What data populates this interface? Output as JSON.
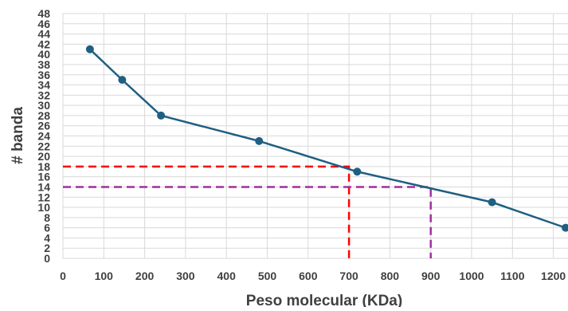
{
  "chart_data": {
    "type": "line",
    "title": "",
    "xlabel": "Peso molecular (KDa)",
    "ylabel": "# banda",
    "xlim": [
      0,
      1230
    ],
    "ylim": [
      0,
      48
    ],
    "xticks": [
      0,
      100,
      200,
      300,
      400,
      500,
      600,
      700,
      800,
      900,
      1000,
      1100,
      1200
    ],
    "yticks": [
      0,
      2,
      4,
      6,
      8,
      10,
      12,
      14,
      16,
      18,
      20,
      22,
      24,
      26,
      28,
      30,
      32,
      34,
      36,
      38,
      40,
      42,
      44,
      46,
      48
    ],
    "x_tick_labels": [
      "0",
      "100",
      "200",
      "300",
      "400",
      "500",
      "600",
      "700",
      "800",
      "900",
      "1000",
      "1100",
      "1200"
    ],
    "y_tick_labels": [
      "0",
      "2",
      "4",
      "6",
      "8",
      "10",
      "12",
      "14",
      "16",
      "18",
      "20",
      "22",
      "24",
      "26",
      "28",
      "30",
      "32",
      "34",
      "36",
      "38",
      "40",
      "42",
      "44",
      "46",
      "48"
    ],
    "grid": true,
    "series": [
      {
        "x": [
          66,
          145,
          240,
          480,
          720,
          1050,
          1230
        ],
        "y": [
          41,
          35,
          28,
          23,
          17,
          11,
          6
        ],
        "color": "#1f5f82"
      }
    ],
    "reference_lines": [
      {
        "x": 700,
        "y": 18,
        "color": "#ff0000"
      },
      {
        "x": 900,
        "y": 14,
        "color": "#a0309f"
      }
    ]
  }
}
